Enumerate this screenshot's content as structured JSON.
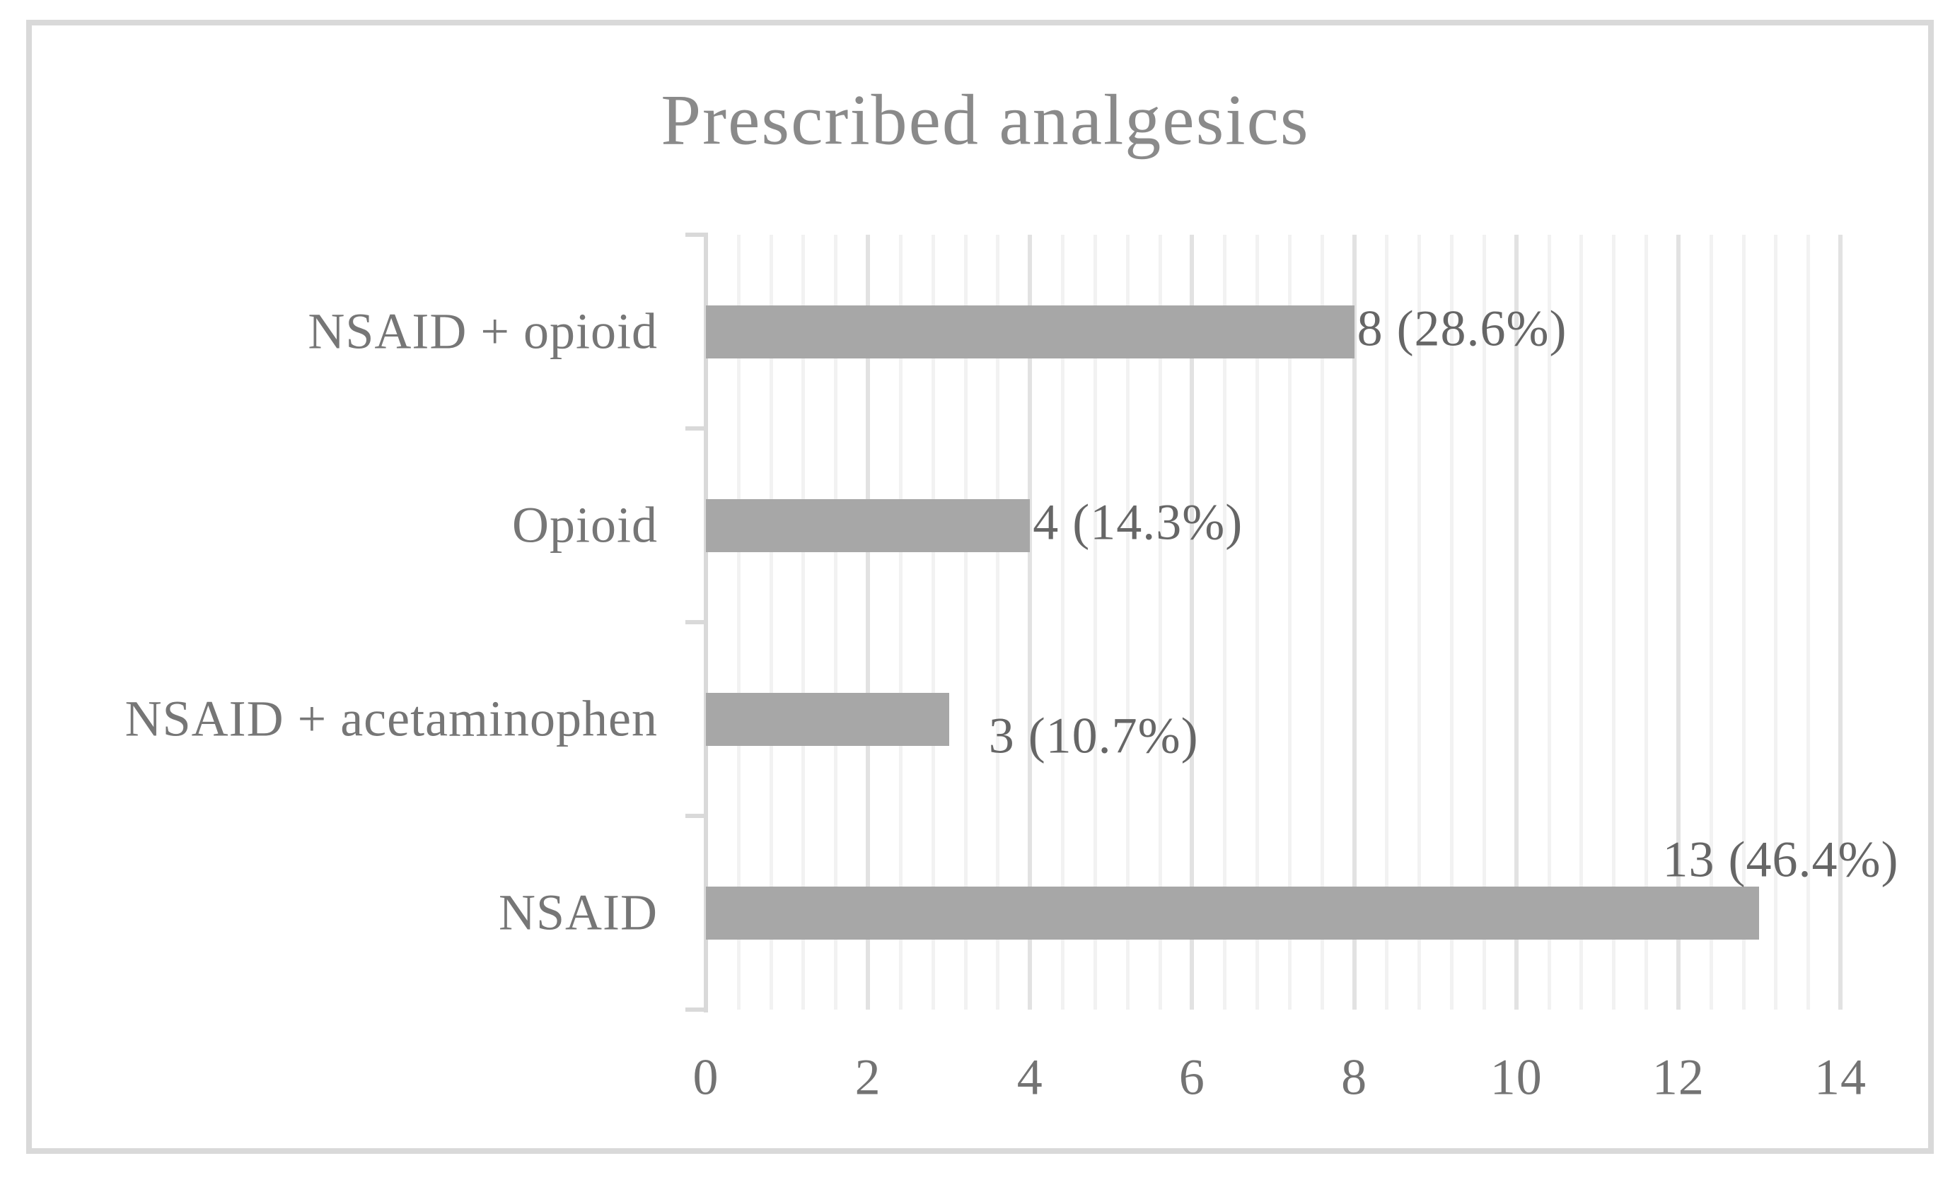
{
  "chart_data": {
    "type": "bar",
    "orientation": "horizontal",
    "title": "Prescribed analgesics",
    "categories": [
      "NSAID + opioid",
      "Opioid",
      "NSAID + acetaminophen",
      "NSAID"
    ],
    "values": [
      8,
      4,
      3,
      13
    ],
    "percentages": [
      28.6,
      14.3,
      10.7,
      46.4
    ],
    "data_labels": [
      "8 (28.6%)",
      "4 (14.3%)",
      "3 (10.7%)",
      "13 (46.4%)"
    ],
    "label_placements": [
      "outside-end",
      "outside-end",
      "outside-end-low",
      "above-end"
    ],
    "x_ticks": [
      "0",
      "2",
      "4",
      "6",
      "8",
      "10",
      "12",
      "14"
    ],
    "xlim": [
      0,
      14
    ],
    "x_major_unit": 2,
    "x_minor_unit": 0.4,
    "grid": "vertical-major-and-minor",
    "legend": "none",
    "colors": {
      "bar": "#a7a7a7",
      "grid_major": "#e2e2e2",
      "grid_minor": "#f2f2f2",
      "axis": "#d9d9d9",
      "border": "#d9d9d9",
      "title_text": "#8a8a8a",
      "category_text": "#767676",
      "tick_text": "#737373",
      "data_label_text": "#666666"
    }
  }
}
